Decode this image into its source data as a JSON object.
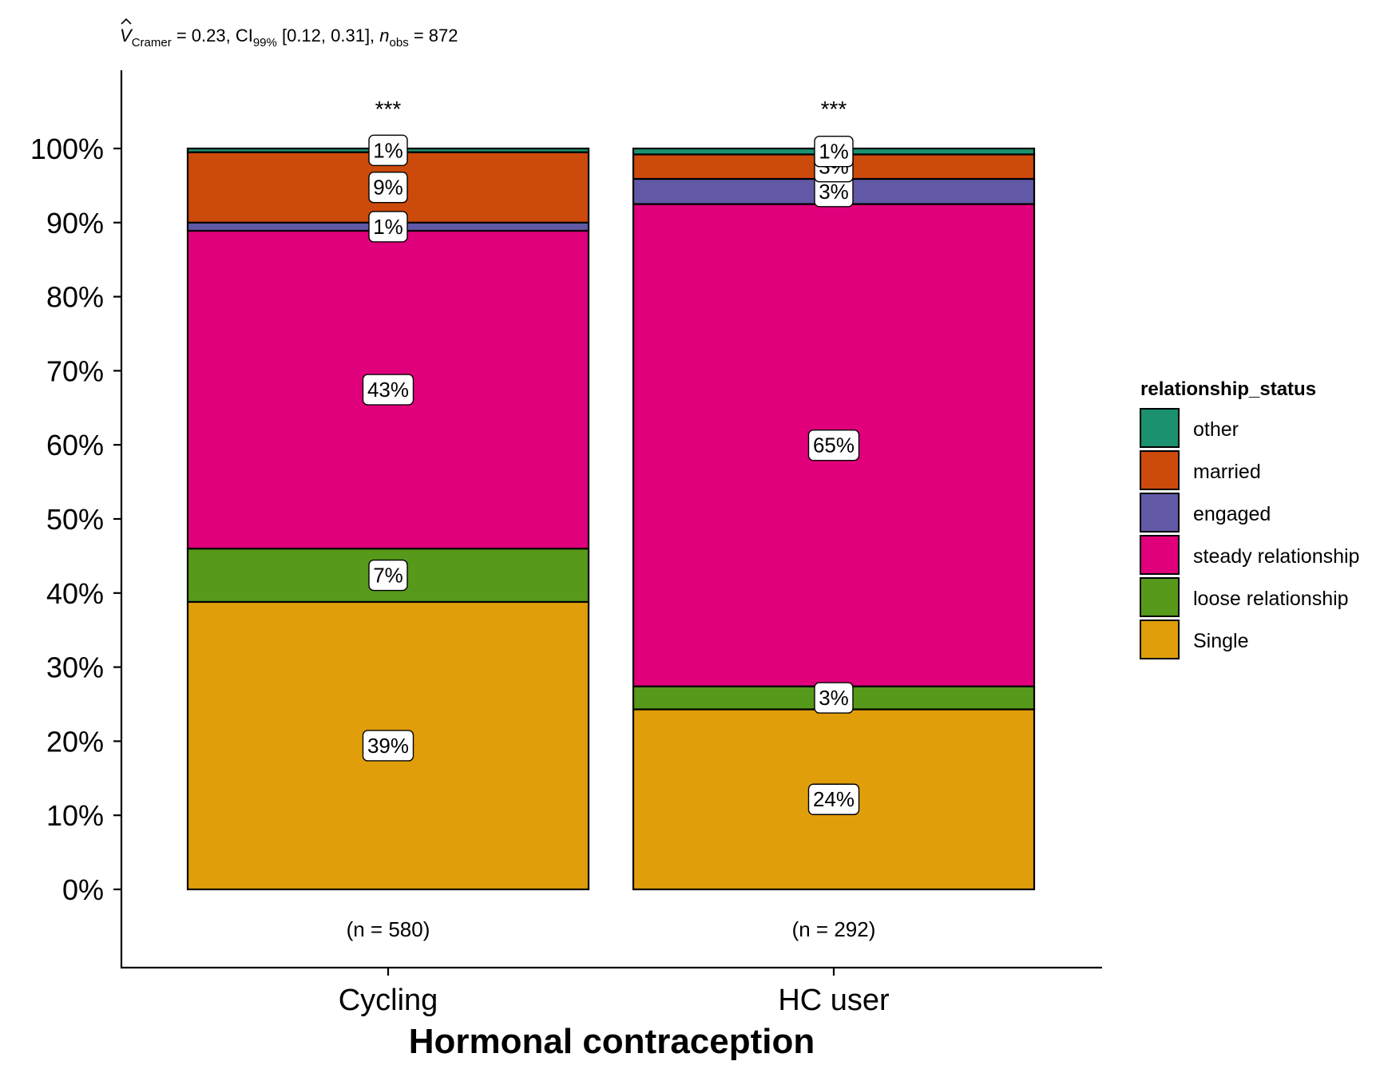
{
  "chart_data": {
    "type": "bar",
    "stacked": true,
    "normalized": true,
    "subtitle": {
      "v_symbol": "V",
      "v_subscript": "Cramer",
      "v_value": " = 0.23, ",
      "ci_label": "CI",
      "ci_subscript": "99%",
      "ci_value": " [0.12, 0.31], ",
      "n_symbol": "n",
      "n_subscript": "obs",
      "n_value": " = 872"
    },
    "xlabel": "Hormonal contraception",
    "ylabel": "",
    "ylim": [
      0,
      100
    ],
    "yticks": [
      "0%",
      "10%",
      "20%",
      "30%",
      "40%",
      "50%",
      "60%",
      "70%",
      "80%",
      "90%",
      "100%"
    ],
    "categories": [
      "Cycling",
      "HC user"
    ],
    "counts": [
      "(n = 580)",
      "(n = 292)"
    ],
    "significance": [
      "***",
      "***"
    ],
    "series": [
      {
        "name": "Single",
        "color": "#E09E0A",
        "values": [
          38.8,
          24.3
        ],
        "labels": [
          "39%",
          "24%"
        ]
      },
      {
        "name": "loose relationship",
        "color": "#57991A",
        "values": [
          7.2,
          3.1
        ],
        "labels": [
          "7%",
          "3%"
        ]
      },
      {
        "name": "steady relationship",
        "color": "#E0007B",
        "values": [
          42.9,
          65.1
        ],
        "labels": [
          "43%",
          "65%"
        ]
      },
      {
        "name": "engaged",
        "color": "#6259A6",
        "values": [
          1.1,
          3.4
        ],
        "labels": [
          "1%",
          "3%"
        ]
      },
      {
        "name": "married",
        "color": "#CC4A0B",
        "values": [
          9.5,
          3.3
        ],
        "labels": [
          "9%",
          "3%"
        ]
      },
      {
        "name": "other",
        "color": "#1B9170",
        "values": [
          0.5,
          0.8
        ],
        "labels": [
          "1%",
          "1%"
        ]
      }
    ],
    "legend": {
      "title": "relationship_status",
      "position": "right",
      "order": [
        "other",
        "married",
        "engaged",
        "steady relationship",
        "loose relationship",
        "Single"
      ]
    },
    "grid": false
  }
}
